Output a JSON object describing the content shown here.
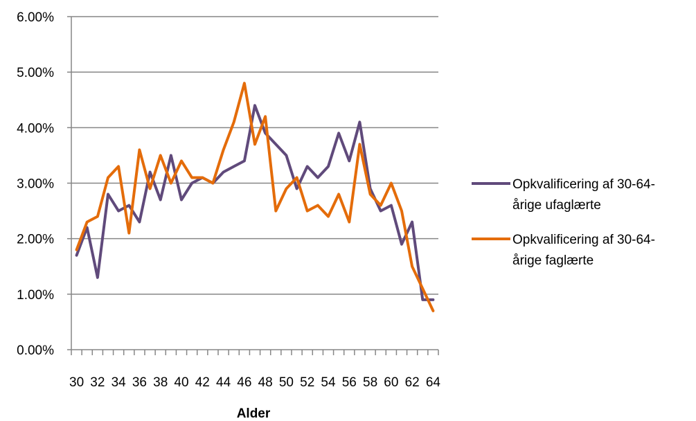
{
  "chart_data": {
    "type": "line",
    "xlabel": "Alder",
    "ylabel": "",
    "ylim": [
      0,
      0.06
    ],
    "y_ticks": [
      "0.00%",
      "1.00%",
      "2.00%",
      "3.00%",
      "4.00%",
      "5.00%",
      "6.00%"
    ],
    "x": [
      30,
      31,
      32,
      33,
      34,
      35,
      36,
      37,
      38,
      39,
      40,
      41,
      42,
      43,
      44,
      45,
      46,
      47,
      48,
      49,
      50,
      51,
      52,
      53,
      54,
      55,
      56,
      57,
      58,
      59,
      60,
      61,
      62,
      63,
      64
    ],
    "x_tick_labels": [
      "30",
      "32",
      "34",
      "36",
      "38",
      "40",
      "42",
      "44",
      "46",
      "48",
      "50",
      "52",
      "54",
      "56",
      "58",
      "60",
      "62",
      "64"
    ],
    "grid": true,
    "legend_position": "right",
    "series": [
      {
        "name": "Opkvalificering af 30-64-årige ufaglærte",
        "name_lines": [
          "Opkvalificering af 30-64-",
          "årige ufaglærte"
        ],
        "color": "#604a7b",
        "values": [
          0.017,
          0.022,
          0.013,
          0.028,
          0.025,
          0.026,
          0.023,
          0.032,
          0.027,
          0.035,
          0.027,
          0.03,
          0.031,
          0.03,
          0.032,
          0.033,
          0.034,
          0.044,
          0.039,
          0.037,
          0.035,
          0.029,
          0.033,
          0.031,
          0.033,
          0.039,
          0.034,
          0.041,
          0.029,
          0.025,
          0.026,
          0.019,
          0.023,
          0.009,
          0.009
        ]
      },
      {
        "name": "Opkvalificering af 30-64-årige faglærte",
        "name_lines": [
          "Opkvalificering af 30-64-",
          "årige faglærte"
        ],
        "color": "#e46c0a",
        "values": [
          0.018,
          0.023,
          0.024,
          0.031,
          0.033,
          0.021,
          0.036,
          0.029,
          0.035,
          0.03,
          0.034,
          0.031,
          0.031,
          0.03,
          0.036,
          0.041,
          0.048,
          0.037,
          0.042,
          0.025,
          0.029,
          0.031,
          0.025,
          0.026,
          0.024,
          0.028,
          0.023,
          0.037,
          0.028,
          0.026,
          0.03,
          0.025,
          0.015,
          0.011,
          0.007
        ]
      }
    ]
  }
}
